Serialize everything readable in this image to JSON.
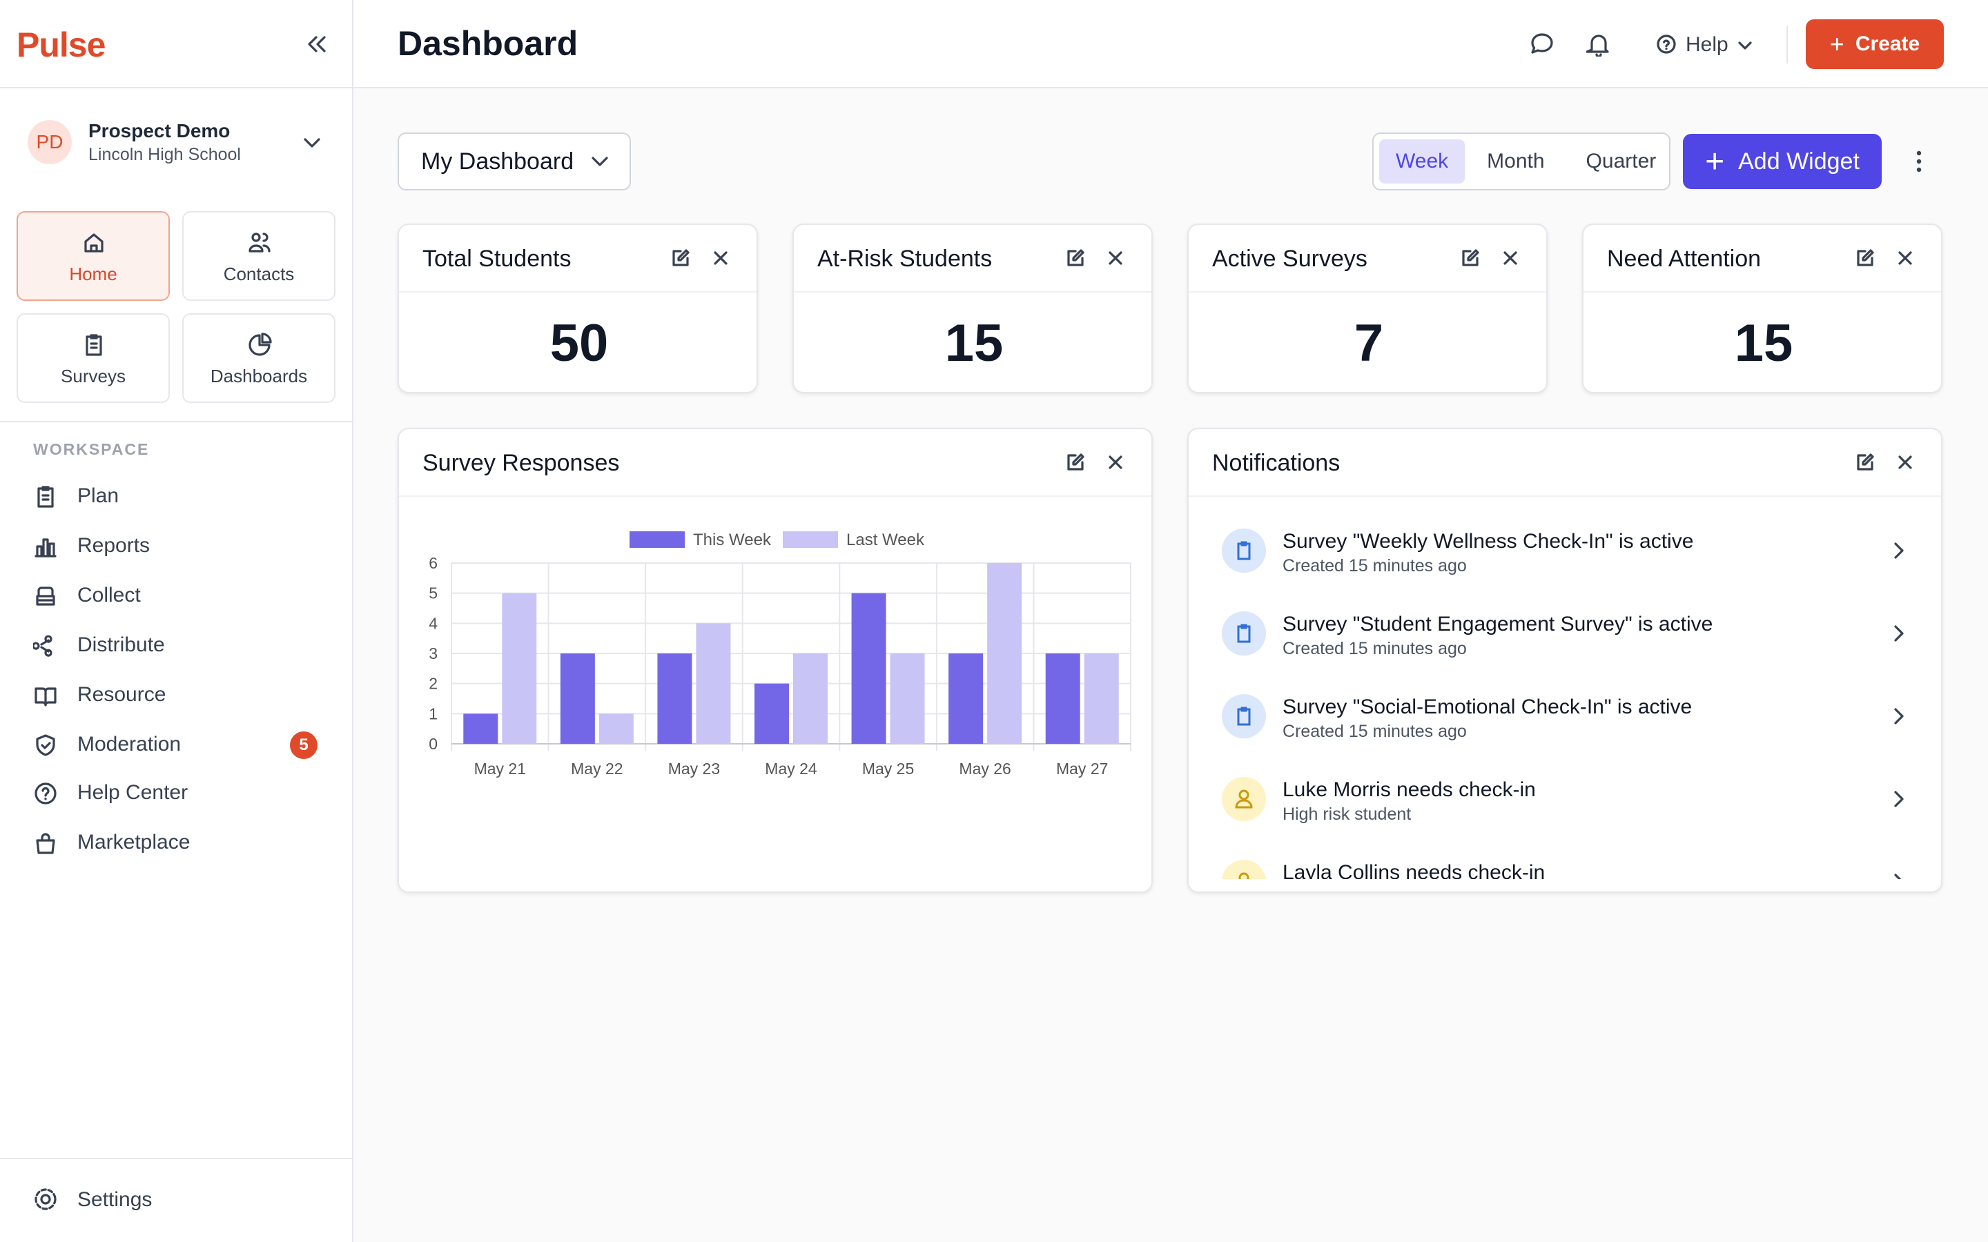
{
  "sidebar": {
    "logo": "Pulse",
    "profile": {
      "initials": "PD",
      "name": "Prospect Demo",
      "school": "Lincoln High School"
    },
    "tiles": [
      "Home",
      "Contacts",
      "Surveys",
      "Dashboards"
    ],
    "section": "WORKSPACE",
    "menu": [
      {
        "label": "Plan"
      },
      {
        "label": "Reports"
      },
      {
        "label": "Collect"
      },
      {
        "label": "Distribute"
      },
      {
        "label": "Resource"
      },
      {
        "label": "Moderation",
        "badge": 5
      },
      {
        "label": "Help Center"
      },
      {
        "label": "Marketplace"
      }
    ],
    "settings": "Settings"
  },
  "header": {
    "title": "Dashboard",
    "help": "Help",
    "create": "Create"
  },
  "toolbar": {
    "dashboard": "My Dashboard",
    "periods": [
      "Week",
      "Month",
      "Quarter"
    ],
    "add_widget": "Add Widget"
  },
  "stats": [
    {
      "label": "Total Students",
      "value": 50
    },
    {
      "label": "At-Risk Students",
      "value": 15
    },
    {
      "label": "Active Surveys",
      "value": 7
    },
    {
      "label": "Need Attention",
      "value": 15
    }
  ],
  "chart_data": {
    "type": "bar",
    "title": "Survey Responses",
    "categories": [
      "May 21",
      "May 22",
      "May 23",
      "May 24",
      "May 25",
      "May 26",
      "May 27"
    ],
    "series": [
      {
        "name": "This Week",
        "color": "#7367e8",
        "values": [
          1,
          3,
          3,
          2,
          5,
          3,
          3
        ]
      },
      {
        "name": "Last Week",
        "color": "#c9c4f6",
        "values": [
          5,
          1,
          4,
          3,
          3,
          6,
          3
        ]
      }
    ],
    "ylim": [
      0,
      6
    ],
    "yticks": [
      0,
      1,
      2,
      3,
      4,
      5,
      6
    ],
    "grid": true,
    "legend": "top"
  },
  "notifications": {
    "title": "Notifications",
    "items": [
      {
        "title": "Survey \"Weekly Wellness Check-In\" is active",
        "subtitle": "Created 15 minutes ago"
      },
      {
        "title": "Survey \"Student Engagement Survey\" is active",
        "subtitle": "Created 15 minutes ago"
      },
      {
        "title": "Survey \"Social-Emotional Check-In\" is active",
        "subtitle": "Created 15 minutes ago"
      },
      {
        "title": "Luke Morris needs check-in",
        "subtitle": "High risk student"
      },
      {
        "title": "Layla Collins needs check-in"
      }
    ]
  }
}
